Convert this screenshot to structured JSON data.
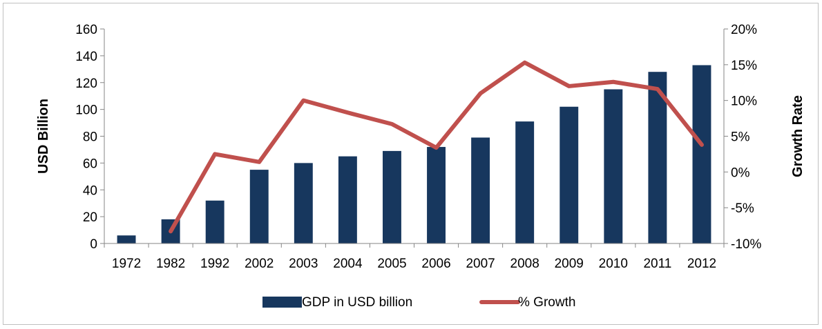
{
  "chart_data": {
    "type": "bar",
    "categories": [
      "1972",
      "1982",
      "1992",
      "2002",
      "2003",
      "2004",
      "2005",
      "2006",
      "2007",
      "2008",
      "2009",
      "2010",
      "2011",
      "2012"
    ],
    "series": [
      {
        "name": "GDP in USD billion",
        "type": "bar",
        "axis": "left",
        "color": "#17375e",
        "values": [
          6,
          18,
          32,
          55,
          60,
          65,
          69,
          72,
          79,
          91,
          102,
          115,
          128,
          133
        ]
      },
      {
        "name": "% Growth",
        "type": "line",
        "axis": "right",
        "color": "#c0504d",
        "values": [
          null,
          -8.3,
          2.5,
          1.4,
          10.0,
          8.3,
          6.7,
          3.4,
          11.0,
          15.3,
          12.0,
          12.6,
          11.6,
          3.8
        ]
      }
    ],
    "ylabel": "USD Billion",
    "y2label": "Growth Rate",
    "ylim": [
      0,
      160
    ],
    "y2lim": [
      -10,
      20
    ],
    "yticks": [
      "0",
      "20",
      "40",
      "60",
      "80",
      "100",
      "120",
      "140",
      "160"
    ],
    "y2ticks": [
      "-10%",
      "-5%",
      "0%",
      "5%",
      "10%",
      "15%",
      "20%"
    ],
    "grid": false,
    "legend_position": "bottom"
  }
}
